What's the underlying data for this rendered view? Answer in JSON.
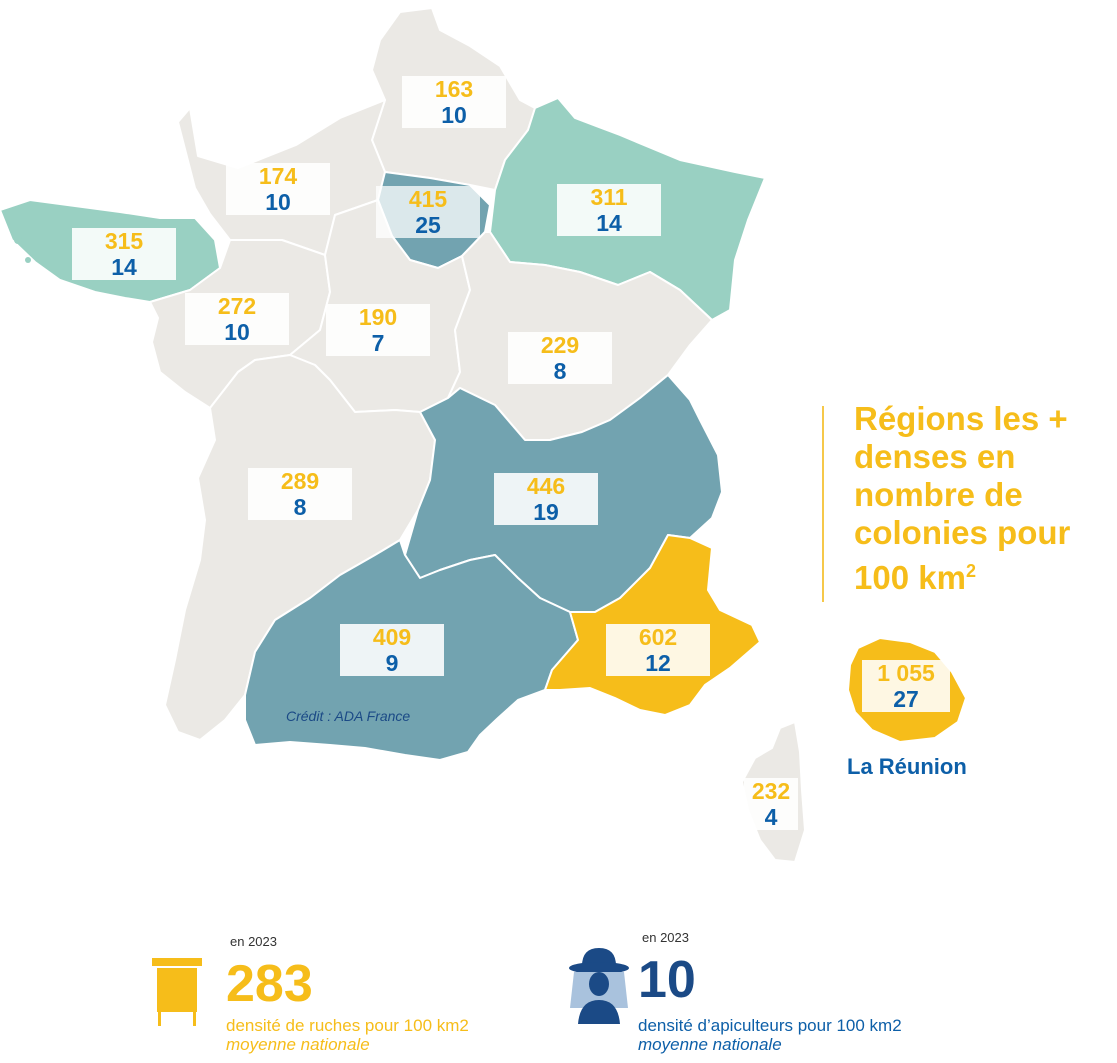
{
  "title": "Régions les + denses en nombre de colonies pour 100 km",
  "title_sup": "2",
  "credit": "Crédit : ADA France",
  "colors": {
    "gray": "#ebe9e5",
    "teal_light": "#99d0c2",
    "teal_dark": "#72a3b0",
    "yellow": "#f6bd1a",
    "blue": "#0d5fa8",
    "navy": "#1b4a86"
  },
  "regions": [
    {
      "id": "hauts-de-france",
      "hives": "163",
      "keepers": "10"
    },
    {
      "id": "normandie",
      "hives": "174",
      "keepers": "10"
    },
    {
      "id": "ile-de-france",
      "hives": "415",
      "keepers": "25"
    },
    {
      "id": "grand-est",
      "hives": "311",
      "keepers": "14"
    },
    {
      "id": "bretagne",
      "hives": "315",
      "keepers": "14"
    },
    {
      "id": "pays-de-la-loire",
      "hives": "272",
      "keepers": "10"
    },
    {
      "id": "centre-val-de-loire",
      "hives": "190",
      "keepers": "7"
    },
    {
      "id": "bourgogne-franche-comte",
      "hives": "229",
      "keepers": "8"
    },
    {
      "id": "nouvelle-aquitaine",
      "hives": "289",
      "keepers": "8"
    },
    {
      "id": "auvergne-rhone-alpes",
      "hives": "446",
      "keepers": "19"
    },
    {
      "id": "occitanie",
      "hives": "409",
      "keepers": "9"
    },
    {
      "id": "provence-alpes-cote-dazur",
      "hives": "602",
      "keepers": "12"
    },
    {
      "id": "corse",
      "hives": "232",
      "keepers": "4"
    },
    {
      "id": "la-reunion",
      "hives": "1 055",
      "keepers": "27"
    }
  ],
  "reunion_label": "La Réunion",
  "hives_stat": {
    "year": "en 2023",
    "value": "283",
    "description": "densité de ruches pour 100 km2",
    "subtitle": "moyenne nationale",
    "icon": "beehive-icon"
  },
  "keepers_stat": {
    "year": "en 2023",
    "value": "10",
    "description": "densité d’apiculteurs pour 100 km2",
    "subtitle": "moyenne nationale",
    "icon": "beekeeper-icon"
  }
}
